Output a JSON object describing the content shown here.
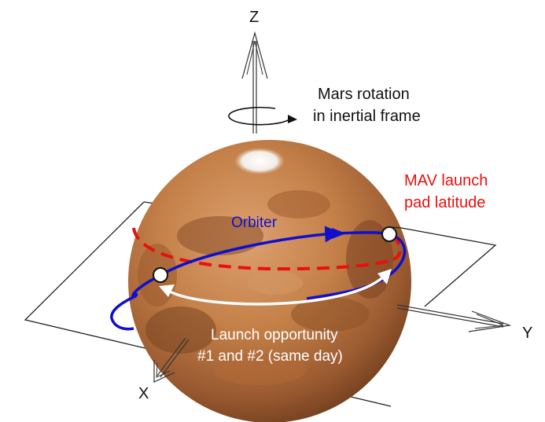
{
  "axes": {
    "z_label": "Z",
    "y_label": "Y",
    "x_label": "X"
  },
  "rotation_caption": {
    "line1": "Mars rotation",
    "line2": "in inertial frame"
  },
  "orbiter_label": "Orbiter",
  "launch_pad": {
    "line1": "MAV launch",
    "line2": "pad latitude"
  },
  "launch_opportunity": {
    "line1": "Launch opportunity",
    "line2": "#1 and #2 (same day)"
  },
  "colors": {
    "orbit": "#1010cc",
    "launch_latitude": "#e81010",
    "mars_base": "#c8824a",
    "plane_line": "#222222",
    "text_dark": "#111111",
    "text_light": "#ffffff"
  }
}
